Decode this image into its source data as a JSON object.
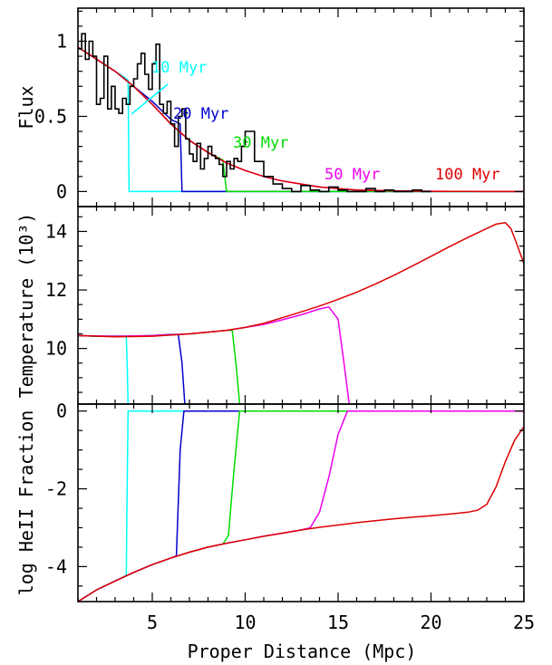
{
  "figure": {
    "xlabel": "Proper Distance (Mpc)",
    "x_ticks": [
      "5",
      "10",
      "15",
      "20",
      "25"
    ]
  },
  "colors": {
    "10 Myr": "#00ffff",
    "20 Myr": "#0000cc",
    "30 Myr": "#00dd00",
    "50 Myr": "#ee00ee",
    "100 Myr": "#dd0000",
    "observed": "#000000"
  },
  "chart_data": [
    {
      "type": "line",
      "panel": "top",
      "ylabel": "Flux",
      "xlim": [
        1,
        25
      ],
      "ylim": [
        -0.1,
        1.22
      ],
      "y_ticks": [
        "0",
        "0.5",
        "1"
      ],
      "annotations": [
        "10 Myr",
        "20 Myr",
        "30 Myr",
        "50 Myr",
        "100 Myr"
      ],
      "observed_step": {
        "x": [
          1.0,
          1.2,
          1.4,
          1.6,
          1.8,
          2.0,
          2.2,
          2.4,
          2.6,
          2.8,
          3.0,
          3.2,
          3.4,
          3.6,
          3.8,
          4.0,
          4.2,
          4.4,
          4.6,
          4.8,
          5.0,
          5.2,
          5.4,
          5.6,
          5.8,
          6.0,
          6.2,
          6.4,
          6.6,
          6.8,
          7.0,
          7.2,
          7.4,
          7.6,
          7.8,
          8.0,
          8.2,
          8.4,
          8.6,
          8.8,
          9.0,
          9.2,
          9.4,
          9.6,
          9.8,
          10.0,
          10.5,
          11.0,
          11.5,
          12.0,
          12.5,
          13.0,
          13.5,
          14.0,
          14.5,
          15.0,
          15.5,
          16.0,
          16.5,
          17.0,
          17.5,
          18.0,
          18.5,
          19.0,
          19.5,
          19.8
        ],
        "y": [
          0.95,
          1.05,
          0.88,
          1.0,
          0.9,
          0.58,
          0.62,
          0.9,
          0.55,
          0.7,
          0.55,
          0.52,
          0.62,
          0.58,
          0.7,
          0.75,
          0.85,
          0.92,
          0.78,
          0.68,
          0.85,
          0.98,
          0.58,
          0.52,
          0.6,
          0.45,
          0.3,
          0.5,
          0.55,
          0.35,
          0.25,
          0.2,
          0.32,
          0.15,
          0.22,
          0.3,
          0.24,
          0.22,
          0.18,
          0.1,
          0.2,
          0.15,
          0.22,
          0.2,
          0.3,
          0.4,
          0.2,
          0.1,
          0.05,
          0.02,
          0.0,
          0.04,
          0.01,
          0.0,
          0.03,
          0.01,
          0.0,
          0.0,
          0.02,
          0.0,
          0.01,
          0.0,
          0.0,
          0.01,
          0.0,
          0.0
        ]
      },
      "series": [
        {
          "name": "10 Myr",
          "x": [
            1,
            1.5,
            2,
            2.5,
            3,
            3.5,
            3.7,
            3.75,
            25
          ],
          "y": [
            0.96,
            0.92,
            0.88,
            0.84,
            0.8,
            0.76,
            0.74,
            0.0,
            0.0
          ]
        },
        {
          "name": "20 Myr",
          "x": [
            1,
            2,
            3,
            4,
            5,
            6,
            6.5,
            6.6,
            25
          ],
          "y": [
            0.96,
            0.88,
            0.8,
            0.7,
            0.6,
            0.48,
            0.45,
            0.0,
            0.0
          ]
        },
        {
          "name": "30 Myr",
          "x": [
            1,
            2,
            3,
            4,
            5,
            6,
            7,
            8,
            8.8,
            9.0,
            25
          ],
          "y": [
            0.96,
            0.88,
            0.8,
            0.7,
            0.58,
            0.45,
            0.34,
            0.26,
            0.21,
            0.0,
            0.0
          ]
        },
        {
          "name": "50 Myr",
          "x": [
            1,
            2,
            3,
            4,
            5,
            6,
            7,
            8,
            9,
            10,
            11,
            12,
            13,
            14,
            15,
            16,
            17,
            18,
            19,
            20,
            21,
            22,
            23,
            24,
            25
          ],
          "y": [
            0.96,
            0.88,
            0.8,
            0.7,
            0.58,
            0.45,
            0.34,
            0.26,
            0.19,
            0.14,
            0.1,
            0.07,
            0.05,
            0.03,
            0.02,
            0.01,
            0.008,
            0.005,
            0.003,
            0.002,
            0.001,
            0.001,
            0.0,
            0.0,
            0.0
          ]
        },
        {
          "name": "100 Myr",
          "x": [
            1,
            2,
            3,
            4,
            5,
            6,
            7,
            8,
            9,
            10,
            11,
            12,
            13,
            14,
            15,
            16,
            17,
            18,
            19,
            20,
            21,
            22,
            23,
            24,
            25
          ],
          "y": [
            0.96,
            0.88,
            0.8,
            0.7,
            0.58,
            0.45,
            0.34,
            0.26,
            0.19,
            0.14,
            0.1,
            0.07,
            0.05,
            0.03,
            0.02,
            0.01,
            0.008,
            0.005,
            0.003,
            0.002,
            0.001,
            0.001,
            0.0,
            0.0,
            0.0
          ]
        }
      ]
    },
    {
      "type": "line",
      "panel": "middle",
      "ylabel": "Temperature (10³)",
      "xlim": [
        1,
        25
      ],
      "ylim": [
        8.1,
        14.85
      ],
      "y_ticks": [
        "10",
        "12",
        "14"
      ],
      "series": [
        {
          "name": "10 Myr",
          "x": [
            1,
            2,
            3,
            3.6,
            3.65,
            3.7
          ],
          "y": [
            10.44,
            10.42,
            10.42,
            10.42,
            9.5,
            8.1
          ]
        },
        {
          "name": "20 Myr",
          "x": [
            1,
            2,
            3,
            4,
            5,
            6,
            6.4,
            6.6,
            6.75
          ],
          "y": [
            10.44,
            10.42,
            10.42,
            10.42,
            10.44,
            10.48,
            10.48,
            9.5,
            8.1
          ]
        },
        {
          "name": "30 Myr",
          "x": [
            1,
            2,
            3,
            4,
            5,
            6,
            7,
            8,
            9,
            9.3,
            9.5,
            9.7
          ],
          "y": [
            10.44,
            10.42,
            10.42,
            10.42,
            10.44,
            10.46,
            10.5,
            10.56,
            10.62,
            10.62,
            9.5,
            8.1
          ]
        },
        {
          "name": "50 Myr",
          "x": [
            1,
            3,
            5,
            7,
            9,
            10,
            11,
            12,
            13,
            14,
            14.5,
            15.0,
            15.3,
            15.6
          ],
          "y": [
            10.44,
            10.42,
            10.44,
            10.5,
            10.62,
            10.72,
            10.82,
            10.98,
            11.15,
            11.35,
            11.42,
            11.0,
            9.6,
            8.1
          ]
        },
        {
          "name": "100 Myr",
          "x": [
            1,
            3,
            5,
            7,
            9,
            10,
            11,
            12,
            13,
            14,
            15,
            16,
            17,
            18,
            19,
            20,
            21,
            22,
            23,
            23.5,
            24,
            24.3,
            24.6,
            25
          ],
          "y": [
            10.44,
            10.4,
            10.42,
            10.5,
            10.62,
            10.72,
            10.86,
            11.05,
            11.25,
            11.45,
            11.68,
            11.92,
            12.2,
            12.5,
            12.82,
            13.15,
            13.48,
            13.8,
            14.1,
            14.25,
            14.3,
            14.1,
            13.6,
            12.9
          ]
        }
      ]
    },
    {
      "type": "line",
      "panel": "bottom",
      "ylabel": "log HeII Fraction",
      "xlim": [
        1,
        25
      ],
      "ylim": [
        -4.9,
        0.18
      ],
      "y_ticks": [
        "0",
        "-2",
        "-4"
      ],
      "series": [
        {
          "name": "10 Myr",
          "x": [
            1,
            1.5,
            2,
            2.5,
            3,
            3.5,
            3.6,
            3.65,
            3.7,
            25
          ],
          "y": [
            -4.9,
            -4.75,
            -4.6,
            -4.48,
            -4.37,
            -4.25,
            -4.22,
            -2.0,
            0.0,
            0.0
          ]
        },
        {
          "name": "20 Myr",
          "x": [
            1,
            2,
            3,
            4,
            5,
            6,
            6.3,
            6.5,
            6.7,
            25
          ],
          "y": [
            -4.9,
            -4.6,
            -4.37,
            -4.15,
            -3.95,
            -3.78,
            -3.72,
            -1.0,
            0.0,
            0.0
          ]
        },
        {
          "name": "30 Myr",
          "x": [
            1,
            2,
            3,
            4,
            5,
            6,
            7,
            8,
            8.8,
            9.1,
            9.4,
            9.7,
            25
          ],
          "y": [
            -4.9,
            -4.6,
            -4.37,
            -4.15,
            -3.95,
            -3.78,
            -3.63,
            -3.5,
            -3.42,
            -3.2,
            -1.5,
            0.0,
            0.0
          ]
        },
        {
          "name": "50 Myr",
          "x": [
            1,
            2,
            3,
            4,
            5,
            6,
            7,
            8,
            9,
            10,
            11,
            12,
            13,
            13.5,
            14,
            14.5,
            15,
            15.5,
            25
          ],
          "y": [
            -4.9,
            -4.6,
            -4.37,
            -4.15,
            -3.95,
            -3.78,
            -3.63,
            -3.5,
            -3.4,
            -3.31,
            -3.22,
            -3.14,
            -3.06,
            -3.0,
            -2.6,
            -1.7,
            -0.6,
            0.0,
            0.0
          ]
        },
        {
          "name": "100 Myr",
          "x": [
            1,
            2,
            3,
            4,
            5,
            6,
            7,
            8,
            9,
            10,
            11,
            12,
            13,
            14,
            15,
            16,
            17,
            18,
            19,
            20,
            21,
            22,
            22.5,
            23,
            23.5,
            24,
            24.5,
            25
          ],
          "y": [
            -4.9,
            -4.6,
            -4.37,
            -4.15,
            -3.95,
            -3.78,
            -3.63,
            -3.5,
            -3.4,
            -3.31,
            -3.22,
            -3.14,
            -3.06,
            -2.99,
            -2.93,
            -2.87,
            -2.82,
            -2.77,
            -2.73,
            -2.69,
            -2.65,
            -2.6,
            -2.55,
            -2.4,
            -1.95,
            -1.3,
            -0.75,
            -0.4
          ]
        }
      ]
    }
  ]
}
